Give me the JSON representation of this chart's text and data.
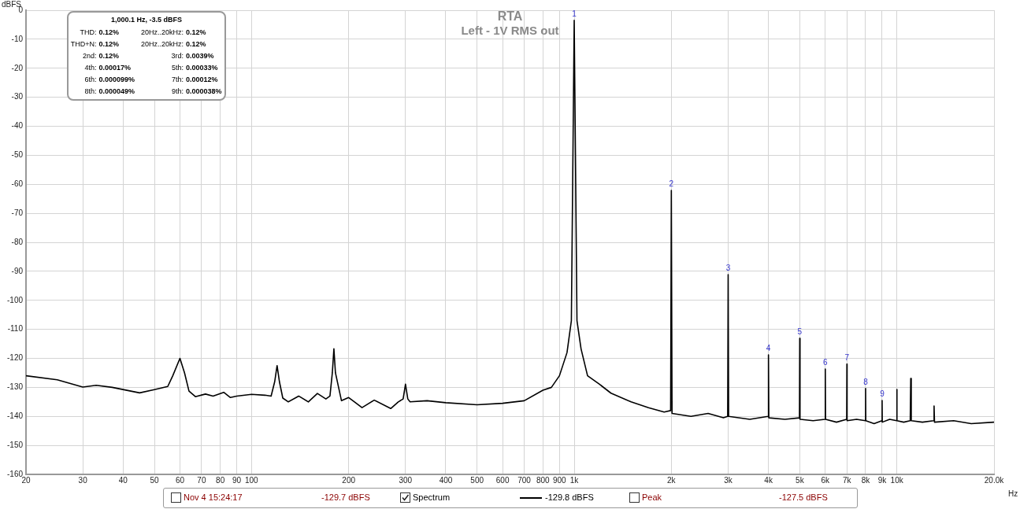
{
  "chart_data": {
    "type": "line",
    "title": "RTA",
    "subtitle": "Left - 1V RMS out",
    "xlabel": "Hz",
    "ylabel": "dBFS",
    "log": "x",
    "grid": true,
    "legend": "bottom",
    "xlim": [
      20,
      20000
    ],
    "ylim": [
      -160,
      0
    ],
    "xticks": [
      20,
      30,
      40,
      50,
      60,
      70,
      80,
      90,
      100,
      200,
      300,
      400,
      500,
      600,
      700,
      800,
      900,
      {
        "value": 1000,
        "label": "1k"
      },
      {
        "value": 2000,
        "label": "2k"
      },
      {
        "value": 3000,
        "label": "3k"
      },
      {
        "value": 4000,
        "label": "4k"
      },
      {
        "value": 5000,
        "label": "5k"
      },
      {
        "value": 6000,
        "label": "6k"
      },
      {
        "value": 7000,
        "label": "7k"
      },
      {
        "value": 8000,
        "label": "8k"
      },
      {
        "value": 9000,
        "label": "9k"
      },
      {
        "value": 10000,
        "label": "10k"
      },
      {
        "value": 20000,
        "label": "20.0k"
      }
    ],
    "yticks": [
      0,
      -10,
      -20,
      -30,
      -40,
      -50,
      -60,
      -70,
      -80,
      -90,
      -100,
      -110,
      -120,
      -130,
      -140,
      -150,
      -160
    ],
    "series": [
      {
        "name": "Spectrum",
        "color": "#000000",
        "x": [
          20,
          25,
          30,
          33,
          37,
          45,
          50,
          55,
          57,
          60,
          62,
          64,
          67,
          72,
          76,
          82,
          86,
          90,
          100,
          110,
          115,
          118,
          120,
          122,
          125,
          130,
          140,
          150,
          160,
          170,
          175,
          178,
          180,
          182,
          190,
          200,
          220,
          240,
          270,
          285,
          295,
          300,
          305,
          310,
          350,
          400,
          500,
          600,
          700,
          800,
          850,
          900,
          950,
          980,
          1000,
          1020,
          1050,
          1100,
          1200,
          1300,
          1500,
          1700,
          1900,
          1990,
          2000,
          2010,
          2300,
          2600,
          2900,
          2990,
          3000,
          3010,
          3500,
          3990,
          4000,
          4010,
          4500,
          4990,
          5000,
          5010,
          5500,
          5990,
          6000,
          6010,
          6500,
          6990,
          7000,
          7010,
          7500,
          7990,
          8000,
          8010,
          8500,
          8990,
          9000,
          9010,
          9500,
          9990,
          10000,
          10010,
          10500,
          11000,
          11040,
          11080,
          12000,
          13000,
          13040,
          13080,
          15000,
          17000,
          20000
        ],
        "values": [
          -126,
          -127.4,
          -129.9,
          -129.3,
          -130,
          -131.9,
          -130.8,
          -129.7,
          -126,
          -120,
          -125,
          -131.3,
          -133.2,
          -132.3,
          -133,
          -131.7,
          -133.5,
          -133,
          -132.4,
          -132.7,
          -133,
          -128,
          -122.5,
          -128,
          -133.7,
          -135,
          -133,
          -135,
          -132.1,
          -134,
          -133,
          -125,
          -116.7,
          -125,
          -134.6,
          -133.5,
          -137,
          -134.4,
          -137.3,
          -135,
          -134,
          -128.9,
          -134,
          -135,
          -134.6,
          -135.3,
          -136,
          -135.5,
          -134.6,
          -131,
          -130,
          -126,
          -118,
          -107,
          -3.5,
          -107,
          -116.7,
          -126,
          -129,
          -132,
          -135,
          -137,
          -138.5,
          -138,
          -62.1,
          -139,
          -140,
          -139,
          -140.5,
          -140,
          -91.1,
          -140,
          -141,
          -140,
          -118.8,
          -140.5,
          -141,
          -140.5,
          -113.1,
          -141,
          -141.5,
          -141,
          -123.7,
          -141,
          -142,
          -141,
          -122,
          -141.5,
          -141,
          -141.5,
          -130.4,
          -141.5,
          -142.5,
          -141.5,
          -134.5,
          -142,
          -141,
          -141.5,
          -130.7,
          -141.5,
          -142,
          -141.5,
          -126.9,
          -141.5,
          -142,
          -141.5,
          -136.4,
          -142,
          -141.5,
          -142.5,
          -142
        ]
      }
    ],
    "annotations": [
      "1,000.1 Hz, -3.5 dBFS",
      "THD: 0.12%",
      "20Hz..20kHz: 0.12%",
      "THD+N: 0.12%",
      "20Hz..20kHz: 0.12%",
      "2nd: 0.12%",
      "3rd: 0.0039%",
      "4th: 0.00017%",
      "5th: 0.00033%",
      "6th: 0.000099%",
      "7th: 0.00012%",
      "8th: 0.000049%",
      "9th: 0.000038%",
      "Nov 4 15:24:17",
      "-129.7 dBFS",
      "-129.8 dBFS",
      "Peak",
      "-127.5 dBFS",
      {
        "text": "1",
        "x": 1000,
        "y": -3.5
      },
      {
        "text": "2",
        "x": 2000,
        "y": -62.1
      },
      {
        "text": "3",
        "x": 3000,
        "y": -91.1
      },
      {
        "text": "4",
        "x": 4000,
        "y": -118.8
      },
      {
        "text": "5",
        "x": 5000,
        "y": -113.1
      },
      {
        "text": "6",
        "x": 6000,
        "y": -123.7
      },
      {
        "text": "7",
        "x": 7000,
        "y": -122
      },
      {
        "text": "8",
        "x": 8000,
        "y": -130.4
      },
      {
        "text": "9",
        "x": 9000,
        "y": -134.5
      }
    ]
  }
}
